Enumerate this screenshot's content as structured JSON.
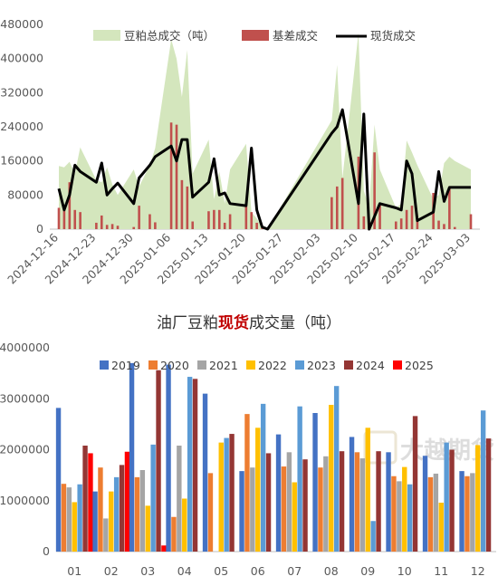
{
  "chart_data": [
    {
      "type": "bar",
      "legend": [
        "豆粕总成交（吨）",
        "基差成交",
        "现货成交"
      ],
      "colors": {
        "total_area": "#d4e6bd",
        "basis_bar": "#c0504d",
        "spot_line": "#000000"
      },
      "ylim": [
        0,
        480000
      ],
      "yticks": [
        0,
        80000,
        160000,
        240000,
        320000,
        400000,
        480000
      ],
      "xticks": [
        "2024-12-16",
        "2024-12-23",
        "2024-12-30",
        "2025-01-06",
        "2025-01-13",
        "2025-01-20",
        "2025-01-27",
        "2025-02-03",
        "2025-02-10",
        "2025-02-17",
        "2025-02-24",
        "2025-03-03"
      ],
      "x": [
        "2024-12-16",
        "2024-12-17",
        "2024-12-18",
        "2024-12-19",
        "2024-12-20",
        "2024-12-23",
        "2024-12-24",
        "2024-12-25",
        "2024-12-26",
        "2024-12-27",
        "2024-12-30",
        "2024-12-31",
        "2025-01-02",
        "2025-01-03",
        "2025-01-06",
        "2025-01-07",
        "2025-01-08",
        "2025-01-09",
        "2025-01-10",
        "2025-01-13",
        "2025-01-14",
        "2025-01-15",
        "2025-01-16",
        "2025-01-17",
        "2025-01-20",
        "2025-01-21",
        "2025-01-22",
        "2025-01-23",
        "2025-01-24",
        "2025-02-05",
        "2025-02-06",
        "2025-02-07",
        "2025-02-10",
        "2025-02-11",
        "2025-02-12",
        "2025-02-13",
        "2025-02-14",
        "2025-02-17",
        "2025-02-18",
        "2025-02-19",
        "2025-02-20",
        "2025-02-21",
        "2025-02-24",
        "2025-02-25",
        "2025-02-26",
        "2025-02-27",
        "2025-02-28",
        "2025-03-03"
      ],
      "series": [
        {
          "name": "豆粕总成交（吨）",
          "type": "area",
          "values": [
            148000,
            145000,
            158000,
            130000,
            192000,
            115000,
            110000,
            145000,
            105000,
            80000,
            140000,
            100000,
            150000,
            190000,
            445000,
            400000,
            310000,
            420000,
            130000,
            210000,
            70000,
            135000,
            60000,
            140000,
            200000,
            40000,
            25000,
            5000,
            0,
            255000,
            385000,
            120000,
            460000,
            90000,
            50000,
            245000,
            140000,
            50000,
            60000,
            208000,
            180000,
            150000,
            70000,
            80000,
            155000,
            170000,
            160000,
            140000
          ]
        },
        {
          "name": "基差成交",
          "type": "bar",
          "values": [
            50000,
            45000,
            110000,
            45000,
            40000,
            15000,
            32000,
            10000,
            12000,
            8000,
            5000,
            55000,
            35000,
            16000,
            250000,
            245000,
            115000,
            100000,
            18000,
            42000,
            45000,
            45000,
            15000,
            35000,
            58000,
            40000,
            15000,
            2000,
            0,
            75000,
            100000,
            120000,
            170000,
            30000,
            10000,
            180000,
            60000,
            18000,
            25000,
            45000,
            55000,
            20000,
            85000,
            20000,
            12000,
            100000,
            5000,
            35000
          ]
        },
        {
          "name": "现货成交",
          "type": "line",
          "values": [
            95000,
            45000,
            80000,
            150000,
            135000,
            110000,
            155000,
            80000,
            95000,
            108000,
            60000,
            120000,
            150000,
            170000,
            195000,
            160000,
            210000,
            210000,
            75000,
            110000,
            165000,
            80000,
            85000,
            60000,
            55000,
            190000,
            45000,
            5000,
            0,
            225000,
            240000,
            280000,
            60000,
            270000,
            0,
            30000,
            60000,
            50000,
            45000,
            160000,
            130000,
            20000,
            40000,
            135000,
            65000,
            98000,
            98000,
            98000
          ]
        }
      ]
    },
    {
      "type": "bar",
      "title_pre": "油厂豆粕",
      "title_hl": "现货",
      "title_post": "成交量（吨）",
      "ylim": [
        0,
        4000000
      ],
      "yticks": [
        0,
        1000000,
        2000000,
        3000000,
        4000000
      ],
      "categories": [
        "01",
        "02",
        "03",
        "04",
        "05",
        "06",
        "07",
        "08",
        "09",
        "10",
        "11",
        "12"
      ],
      "series": [
        {
          "name": "2019",
          "color": "#4472c4",
          "values": [
            2820000,
            1180000,
            3700000,
            3670000,
            3100000,
            1580000,
            2300000,
            2720000,
            2250000,
            1950000,
            1880000,
            1580000
          ]
        },
        {
          "name": "2020",
          "color": "#ed7d31",
          "values": [
            1330000,
            1650000,
            1460000,
            680000,
            1540000,
            2700000,
            1670000,
            1650000,
            1950000,
            1480000,
            1460000,
            1480000
          ]
        },
        {
          "name": "2021",
          "color": "#a5a5a5",
          "values": [
            1260000,
            650000,
            1600000,
            2080000,
            0,
            1650000,
            1950000,
            1870000,
            1830000,
            1380000,
            1530000,
            1540000
          ]
        },
        {
          "name": "2022",
          "color": "#ffc000",
          "values": [
            970000,
            1180000,
            900000,
            1040000,
            2140000,
            2430000,
            1360000,
            2880000,
            2430000,
            1660000,
            960000,
            2090000
          ]
        },
        {
          "name": "2023",
          "color": "#5b9bd5",
          "values": [
            1320000,
            1460000,
            2100000,
            3430000,
            2230000,
            2900000,
            2850000,
            3250000,
            600000,
            1320000,
            2140000,
            2770000
          ]
        },
        {
          "name": "2024",
          "color": "#943634",
          "values": [
            2080000,
            1700000,
            3560000,
            3390000,
            2310000,
            1930000,
            1810000,
            1970000,
            1970000,
            2660000,
            2000000,
            2220000
          ]
        },
        {
          "name": "2025",
          "color": "#ff0000",
          "values": [
            1930000,
            1960000,
            120000,
            null,
            null,
            null,
            null,
            null,
            null,
            null,
            null,
            null
          ]
        }
      ]
    }
  ],
  "watermark": "大越期货"
}
